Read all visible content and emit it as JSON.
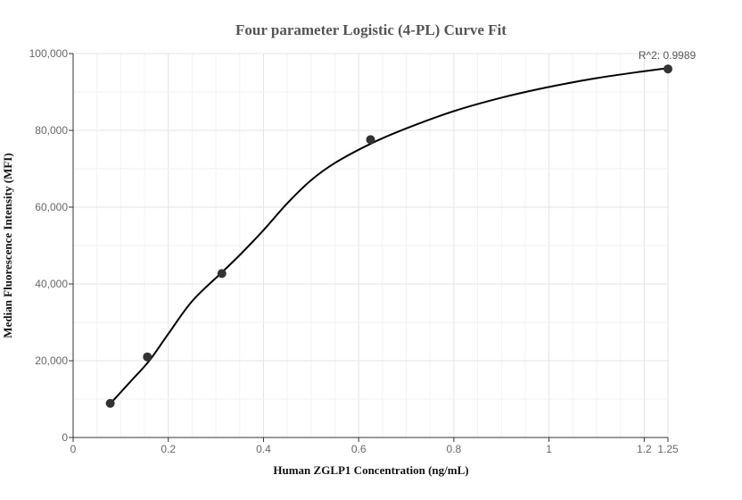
{
  "chart_data": {
    "type": "scatter",
    "title": "Four parameter Logistic (4-PL) Curve Fit",
    "xlabel": "Human ZGLP1 Concentration (ng/mL)",
    "ylabel": "Median Fluorescence Intensity (MFI)",
    "xlim": [
      0,
      1.25
    ],
    "ylim": [
      0,
      100000
    ],
    "x_ticks": [
      0,
      0.2,
      0.4,
      0.6,
      0.8,
      1,
      1.2,
      1.25
    ],
    "x_tick_labels": [
      "0",
      "0.2",
      "0.4",
      "0.6",
      "0.8",
      "1",
      "1.2",
      "1.25"
    ],
    "y_ticks": [
      0,
      20000,
      40000,
      60000,
      80000,
      100000
    ],
    "y_tick_labels": [
      "0",
      "20,000",
      "40,000",
      "60,000",
      "80,000",
      "100,000"
    ],
    "grid": true,
    "series": [
      {
        "points": [
          {
            "x": 0.078,
            "y": 8900
          },
          {
            "x": 0.156,
            "y": 21000
          },
          {
            "x": 0.3125,
            "y": 42700
          },
          {
            "x": 0.625,
            "y": 77600
          },
          {
            "x": 1.25,
            "y": 96000
          }
        ],
        "color": "#333333"
      }
    ],
    "fit_curve": {
      "points": [
        {
          "x": 0.078,
          "y": 8800
        },
        {
          "x": 0.12,
          "y": 14500
        },
        {
          "x": 0.16,
          "y": 20000
        },
        {
          "x": 0.2,
          "y": 27000
        },
        {
          "x": 0.25,
          "y": 35500
        },
        {
          "x": 0.3125,
          "y": 43000
        },
        {
          "x": 0.35,
          "y": 47500
        },
        {
          "x": 0.4,
          "y": 54000
        },
        {
          "x": 0.45,
          "y": 61000
        },
        {
          "x": 0.5,
          "y": 67000
        },
        {
          "x": 0.55,
          "y": 71500
        },
        {
          "x": 0.625,
          "y": 76500
        },
        {
          "x": 0.7,
          "y": 80500
        },
        {
          "x": 0.8,
          "y": 85000
        },
        {
          "x": 0.9,
          "y": 88500
        },
        {
          "x": 1.0,
          "y": 91300
        },
        {
          "x": 1.1,
          "y": 93600
        },
        {
          "x": 1.2,
          "y": 95400
        },
        {
          "x": 1.25,
          "y": 96200
        }
      ],
      "color": "#000000"
    },
    "annotation": "R^2: 0.9989"
  }
}
